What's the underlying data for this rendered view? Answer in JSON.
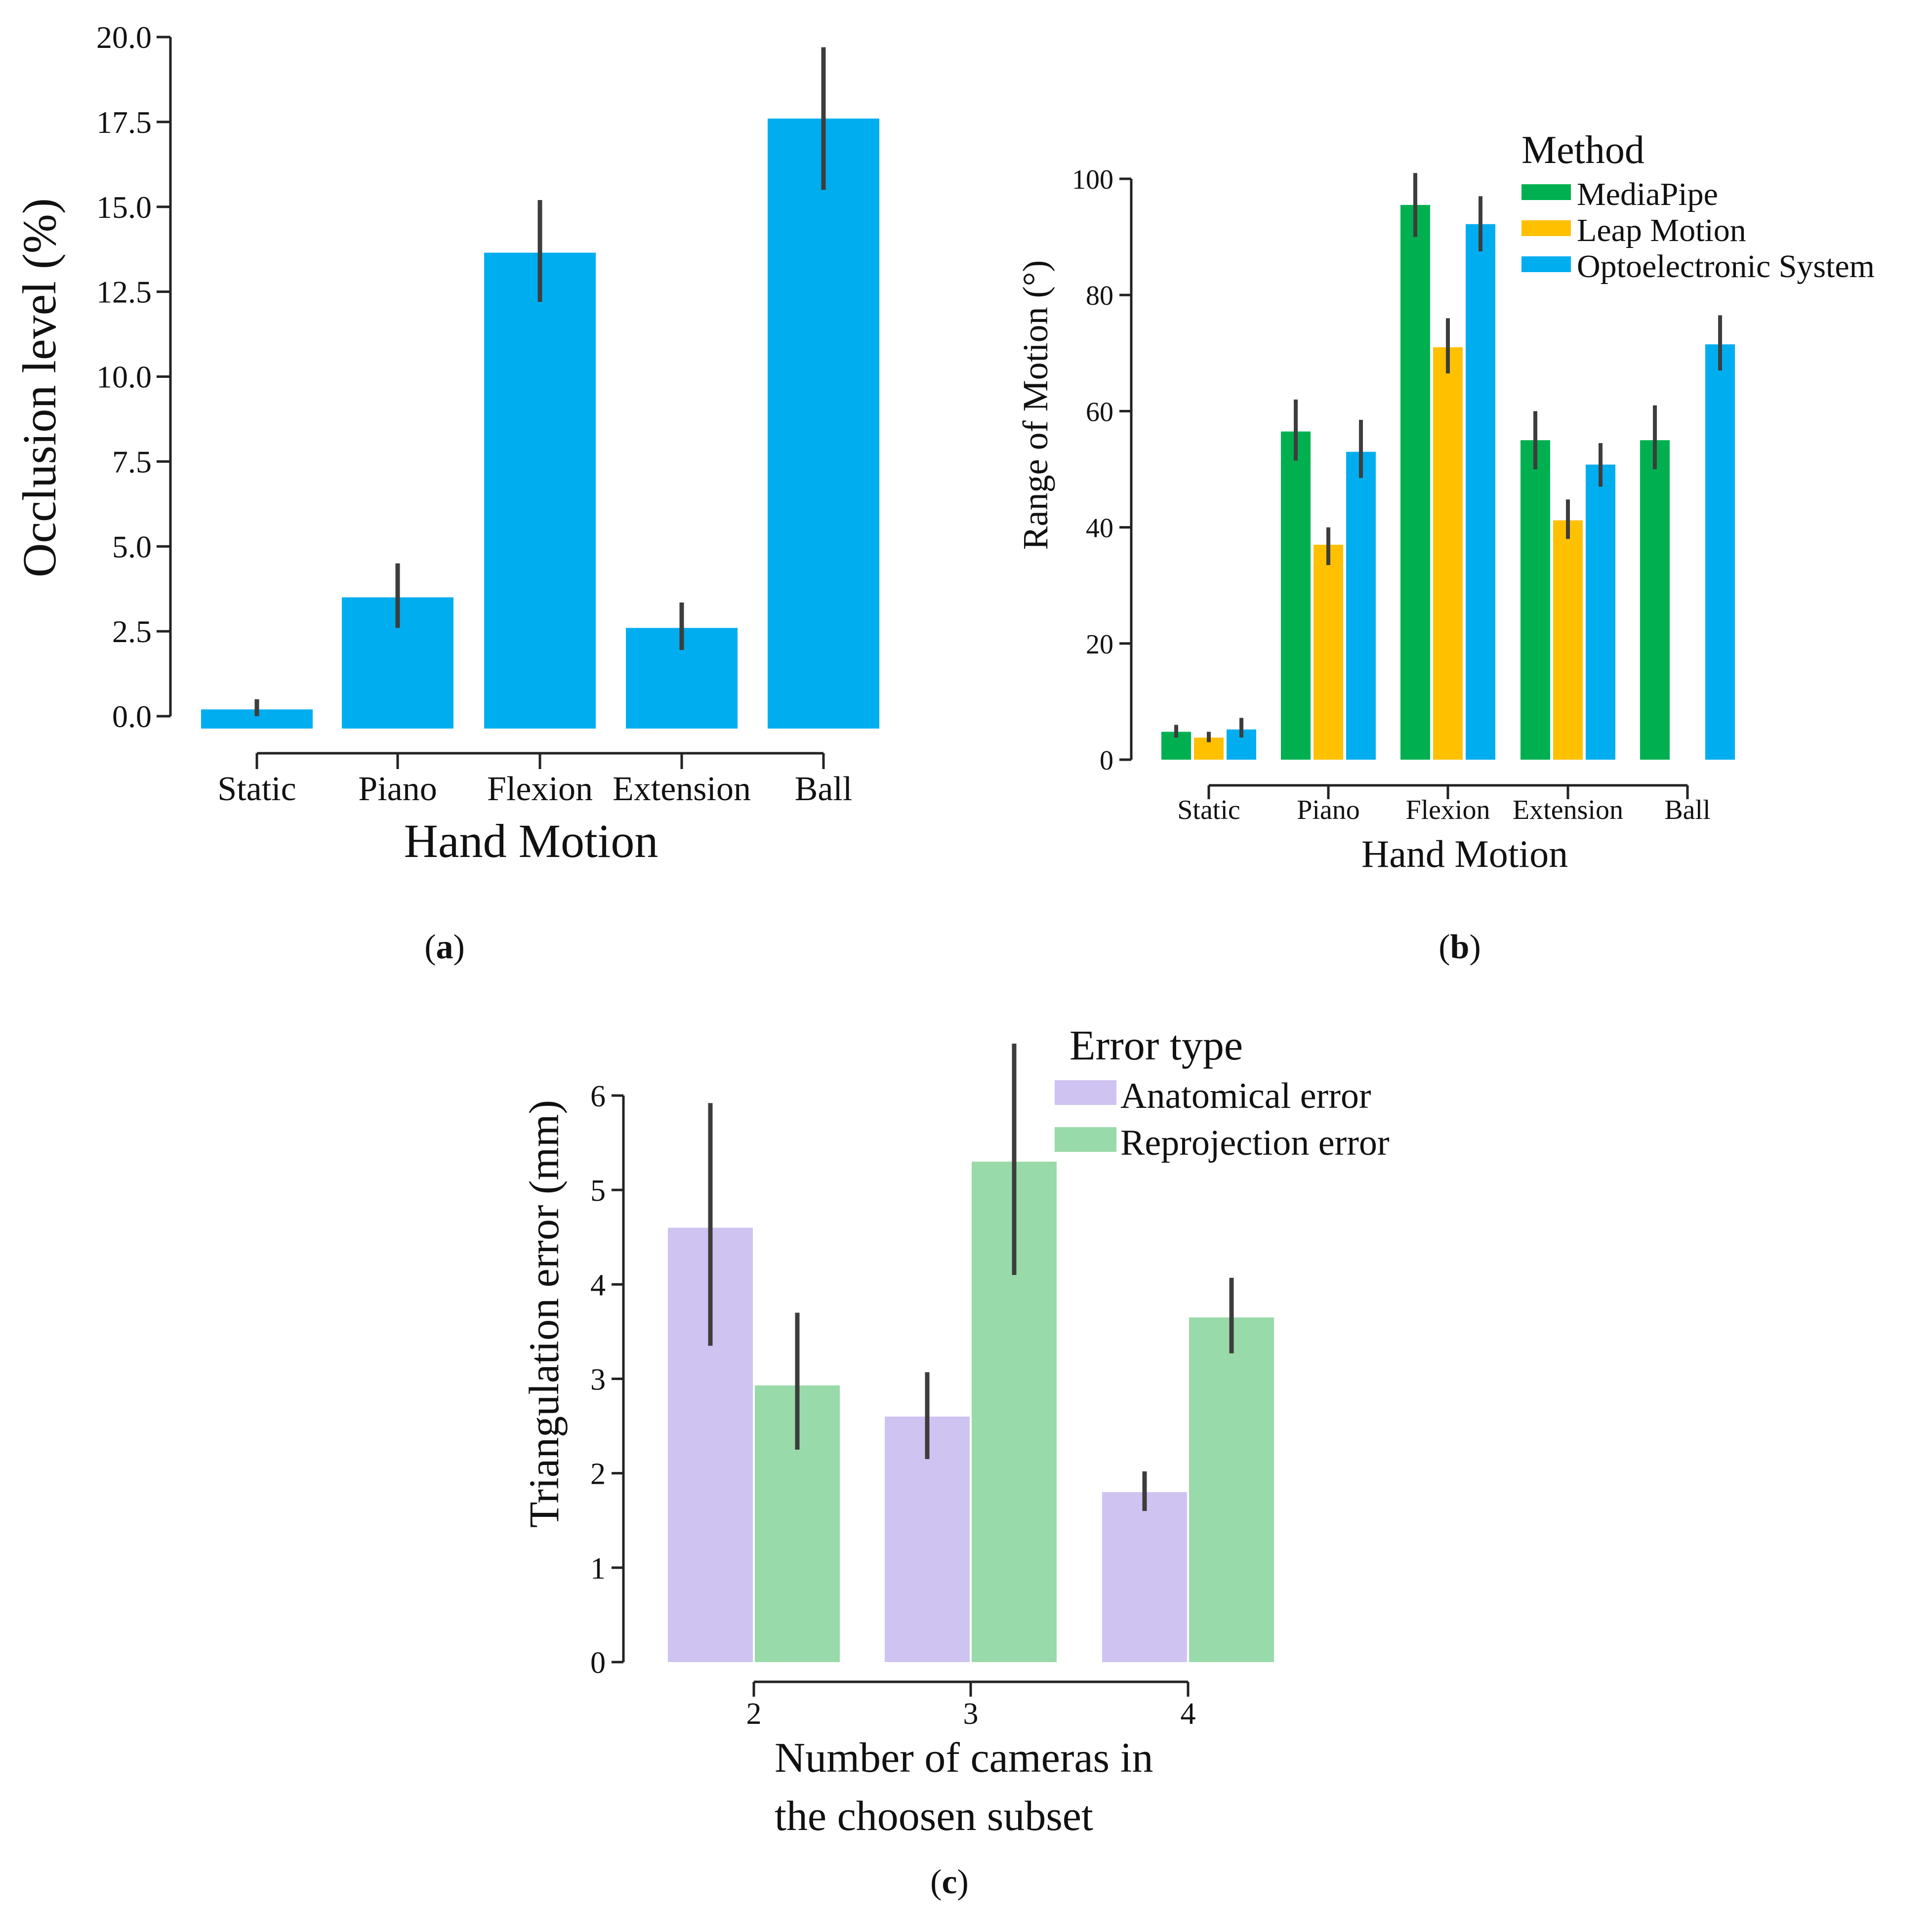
{
  "chart_data": [
    {
      "id": "a",
      "type": "bar",
      "caption": "a",
      "categories": [
        "Static",
        "Piano",
        "Flexion",
        "Extension",
        "Ball"
      ],
      "values": [
        0.2,
        3.5,
        13.65,
        2.6,
        17.6
      ],
      "errors": [
        [
          0.0,
          0.5
        ],
        [
          2.6,
          4.5
        ],
        [
          12.2,
          15.2
        ],
        [
          1.95,
          3.35
        ],
        [
          15.5,
          19.7
        ]
      ],
      "ylim": [
        0,
        20
      ],
      "yticks": [
        "0.0",
        "2.5",
        "5.0",
        "7.5",
        "10.0",
        "12.5",
        "15.0",
        "17.5",
        "20.0"
      ],
      "xlabel": "Hand Motion",
      "ylabel": "Occlusion level (%)",
      "colors": {
        "bar": "#00AEEF",
        "error": "#3d3d3d"
      }
    },
    {
      "id": "b",
      "type": "bar",
      "caption": "b",
      "categories": [
        "Static",
        "Piano",
        "Flexion",
        "Extension",
        "Ball"
      ],
      "series": [
        {
          "name": "MediaPipe",
          "color": "#00B050",
          "values": [
            4.8,
            56.5,
            95.5,
            55.0,
            55.0
          ],
          "errors": [
            [
              3.8,
              6.0
            ],
            [
              51.5,
              62.0
            ],
            [
              90.0,
              101.0
            ],
            [
              50.0,
              60.0
            ],
            [
              50.0,
              61.0
            ]
          ]
        },
        {
          "name": "Leap Motion",
          "color": "#FFC000",
          "values": [
            3.8,
            37.0,
            71.0,
            41.2,
            null
          ],
          "errors": [
            [
              3.0,
              4.8
            ],
            [
              33.5,
              40.0
            ],
            [
              66.5,
              76.0
            ],
            [
              38.0,
              44.8
            ],
            null
          ]
        },
        {
          "name": "Optoelectronic System",
          "color": "#00AEEF",
          "values": [
            5.2,
            53.0,
            92.2,
            50.8,
            71.5
          ],
          "errors": [
            [
              3.8,
              7.2
            ],
            [
              48.5,
              58.5
            ],
            [
              87.5,
              97.0
            ],
            [
              47.0,
              54.5
            ],
            [
              67.0,
              76.5
            ]
          ]
        }
      ],
      "ylim": [
        0,
        100
      ],
      "yticks": [
        "0",
        "20",
        "40",
        "60",
        "80",
        "100"
      ],
      "xlabel": "Hand Motion",
      "ylabel": "Range of Motion (°)",
      "legend_title": "Method",
      "legend_position": "top-right",
      "colors": {
        "error": "#3d3d3d"
      }
    },
    {
      "id": "c",
      "type": "bar",
      "caption": "c",
      "categories": [
        "2",
        "3",
        "4"
      ],
      "series": [
        {
          "name": "Anatomical error",
          "color": "#CFC3F2",
          "values": [
            4.6,
            2.6,
            1.8
          ],
          "errors": [
            [
              3.35,
              5.92
            ],
            [
              2.15,
              3.07
            ],
            [
              1.6,
              2.02
            ]
          ]
        },
        {
          "name": "Reprojection error",
          "color": "#98DAA9",
          "values": [
            2.93,
            5.3,
            3.65
          ],
          "errors": [
            [
              2.25,
              3.7
            ],
            [
              4.1,
              6.55
            ],
            [
              3.27,
              4.07
            ]
          ]
        }
      ],
      "ylim": [
        0,
        6
      ],
      "yticks": [
        "0",
        "1",
        "2",
        "3",
        "4",
        "5",
        "6"
      ],
      "xlabel_lines": [
        "Number of cameras in",
        "the choosen subset"
      ],
      "ylabel": "Triangulation error (mm)",
      "legend_title": "Error type",
      "legend_position": "top-right",
      "colors": {
        "error": "#3d3d3d"
      }
    }
  ]
}
